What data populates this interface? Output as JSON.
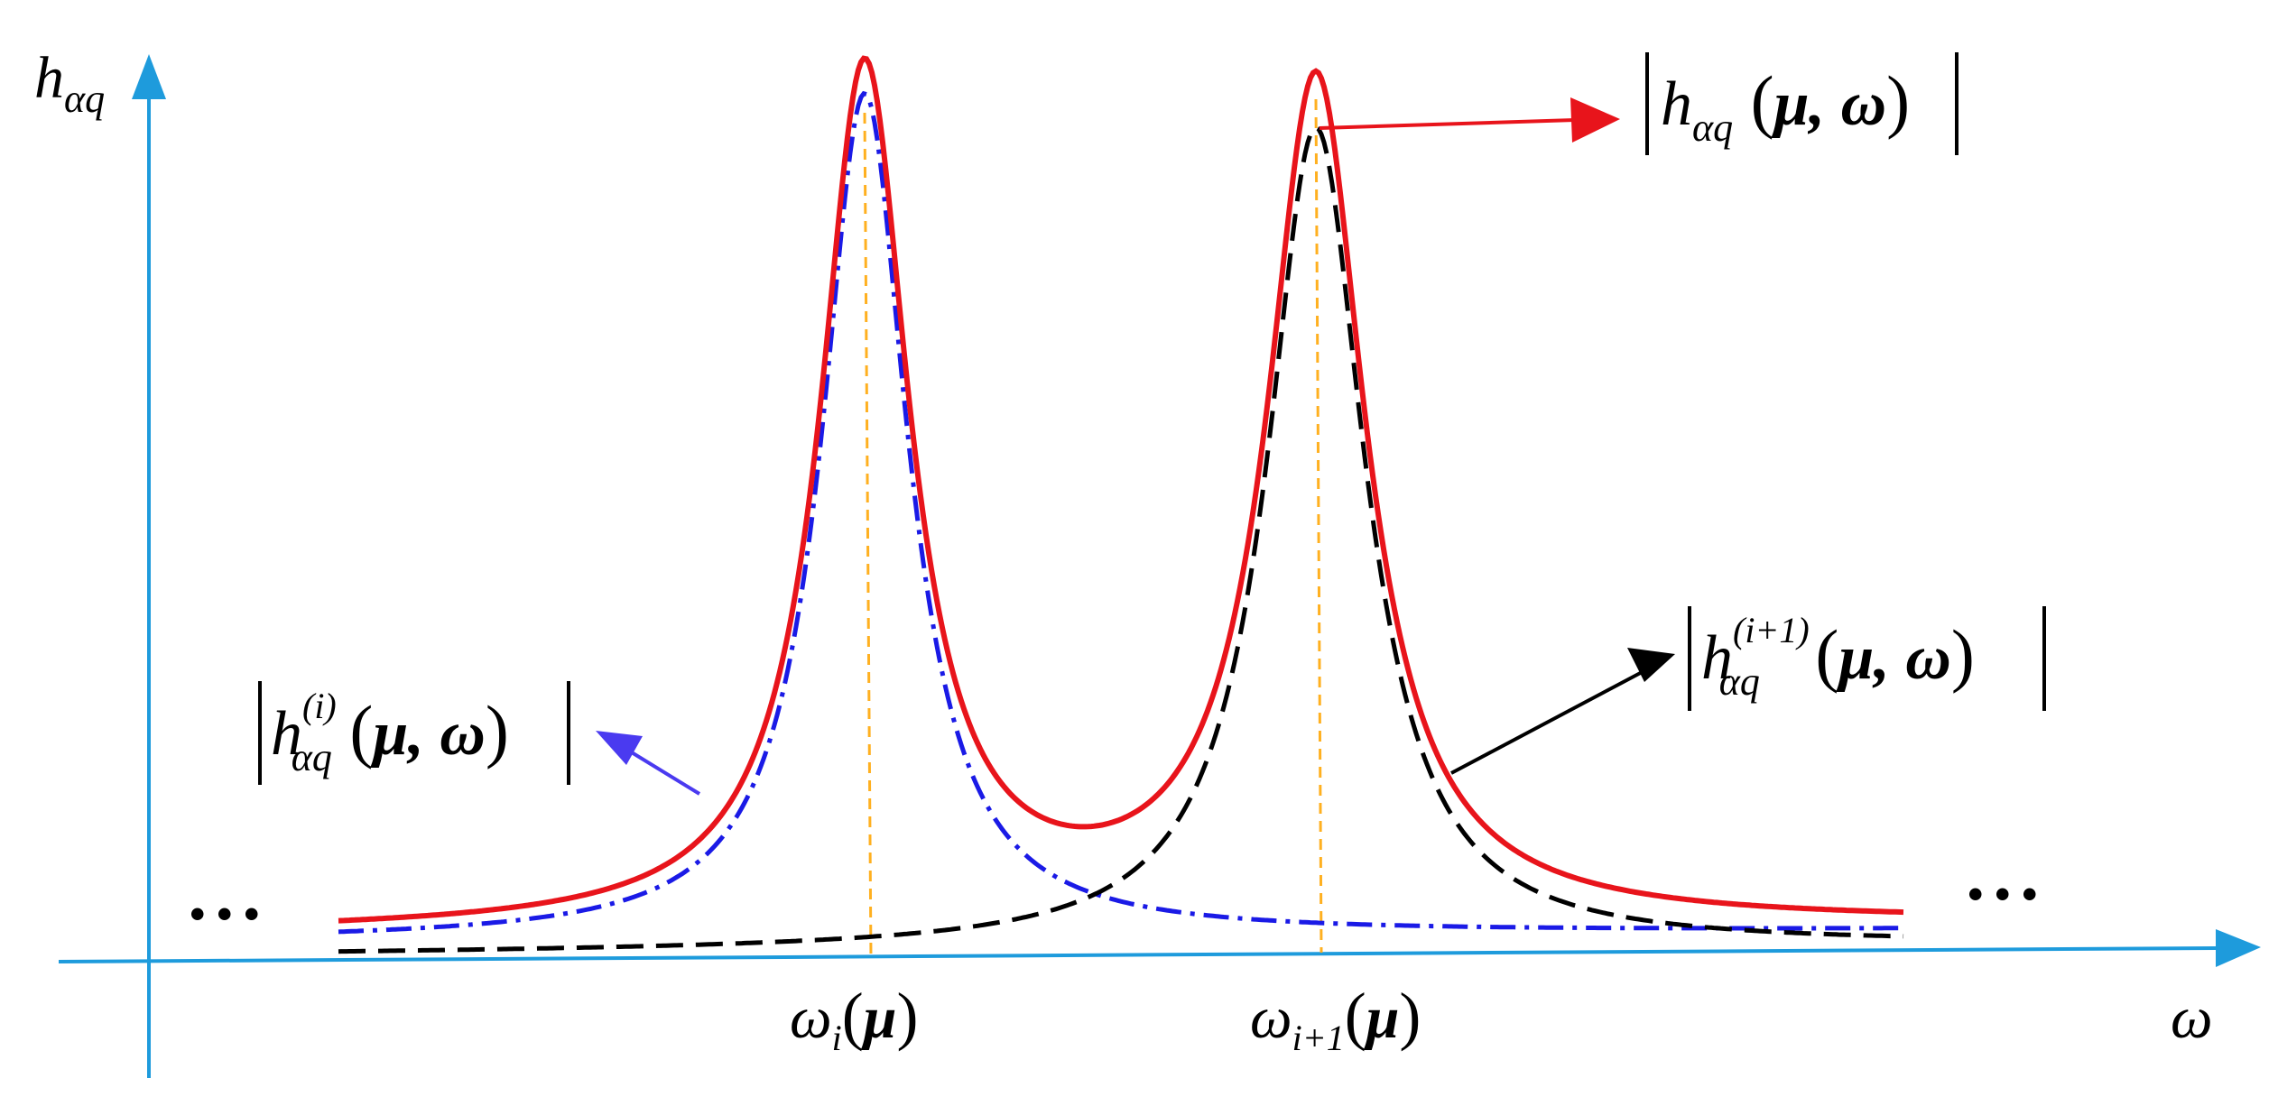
{
  "axes": {
    "y_label_main": "h",
    "y_label_sub": "αq",
    "x_label": "ω",
    "ellipsis_left": "• • •",
    "ellipsis_right": "• • •",
    "axis_color": "#1E9BDC"
  },
  "ticks": {
    "omega_i": {
      "main": "ω",
      "sub": "i",
      "arg": "μ"
    },
    "omega_i1": {
      "main": "ω",
      "sub": "i+1",
      "arg": "μ"
    },
    "guide_color": "#FFB020"
  },
  "curves": {
    "total": {
      "color": "#E8141B",
      "style": "solid"
    },
    "mode_i": {
      "color": "#1A1AE6",
      "style": "dash-dot"
    },
    "mode_i1": {
      "color": "#000000",
      "style": "dashed"
    }
  },
  "labels": {
    "total": {
      "main": "h",
      "sub": "αq",
      "sup": "",
      "args": "μ, ω"
    },
    "mode_i": {
      "main": "h",
      "sub": "αq",
      "sup": "(i)",
      "args": "μ, ω"
    },
    "mode_i1": {
      "main": "h",
      "sub": "αq",
      "sup": "(i+1)",
      "args": "μ, ω"
    }
  },
  "arrows": {
    "total_color": "#E8141B",
    "mode_i_color": "#4A3AF0",
    "mode_i1_color": "#000000"
  }
}
